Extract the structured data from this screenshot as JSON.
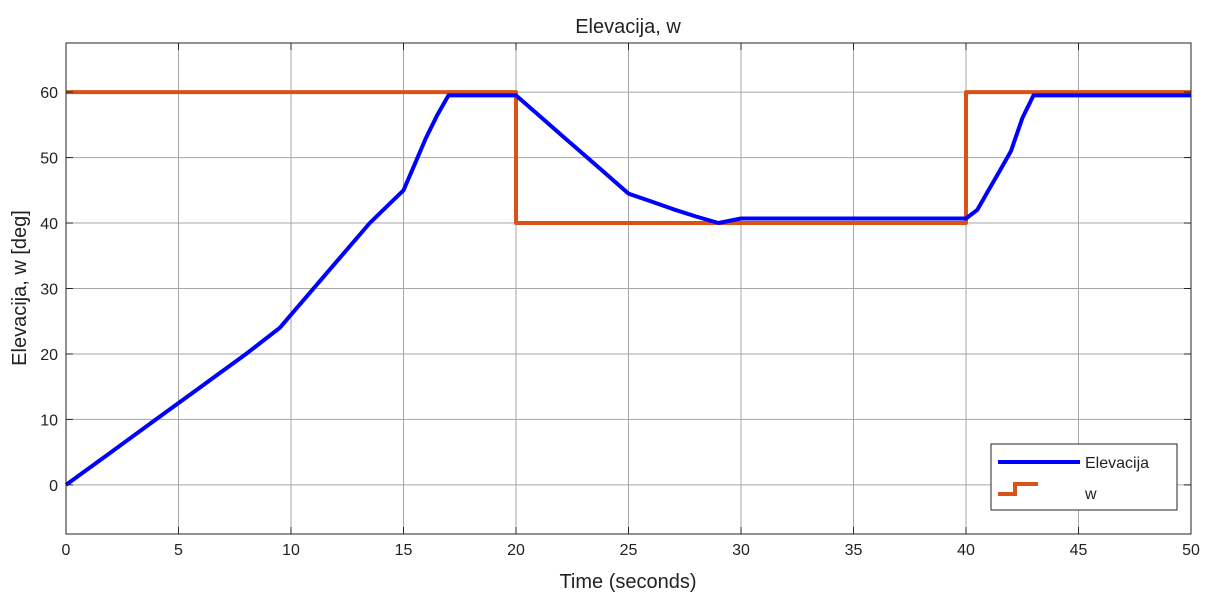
{
  "chart_data": {
    "type": "line",
    "title": "Elevacija, w",
    "xlabel": "Time (seconds)",
    "ylabel": "Elevacija, w [deg]",
    "xlim": [
      0,
      50
    ],
    "ylim": [
      -7.5,
      67.5
    ],
    "xticks": [
      0,
      5,
      10,
      15,
      20,
      25,
      30,
      35,
      40,
      45,
      50
    ],
    "yticks": [
      0,
      10,
      20,
      30,
      40,
      50,
      60
    ],
    "grid": true,
    "legend_position": "bottom-right",
    "series": [
      {
        "name": "Elevacija",
        "color": "#0000ff",
        "style": "line",
        "x": [
          0,
          2,
          4,
          6,
          8,
          9.5,
          10.5,
          12,
          13.5,
          15,
          15.5,
          16,
          16.5,
          17,
          18,
          19,
          20,
          21,
          22,
          23,
          24,
          25,
          26,
          27,
          28,
          29,
          30,
          32,
          35,
          38,
          40,
          40.5,
          41,
          41.5,
          42,
          42.5,
          43,
          45,
          47,
          50
        ],
        "y": [
          0,
          5,
          10,
          15,
          20,
          24,
          28,
          34,
          40,
          45,
          49,
          53,
          56.5,
          59.5,
          59.5,
          59.5,
          59.5,
          56.5,
          53.5,
          50.5,
          47.5,
          44.5,
          43.3,
          42.1,
          41,
          40,
          40.7,
          40.7,
          40.7,
          40.7,
          40.7,
          42,
          45,
          48,
          51,
          56,
          59.5,
          59.5,
          59.5,
          59.5
        ]
      },
      {
        "name": "w",
        "color": "#d95319",
        "style": "step",
        "x": [
          0,
          20,
          20,
          40,
          40,
          50
        ],
        "y": [
          60,
          60,
          40,
          40,
          60,
          60
        ]
      }
    ]
  }
}
